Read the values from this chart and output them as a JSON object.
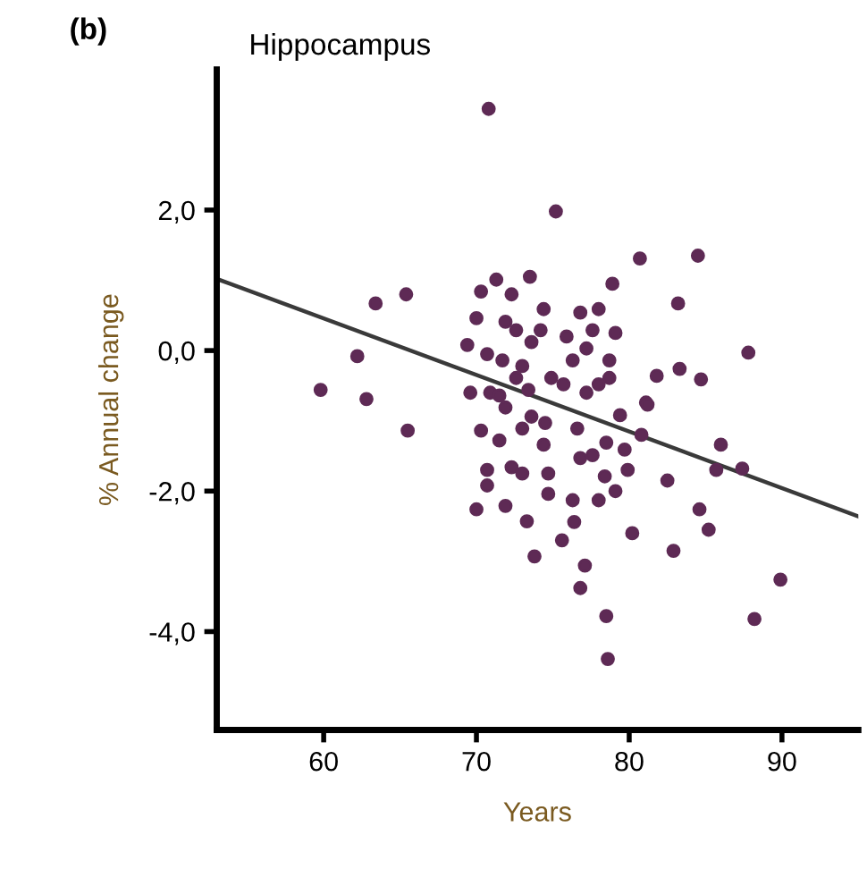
{
  "chart_data": {
    "type": "scatter",
    "title": "Hippocampus",
    "xlabel": "Years",
    "ylabel": "% Annual change",
    "annotations": [
      "(b)"
    ],
    "xlim": [
      53,
      95
    ],
    "ylim": [
      -5.4,
      4.0
    ],
    "xticks": [
      60,
      70,
      80,
      90
    ],
    "yticks": [
      {
        "value": 2,
        "label": "2,0"
      },
      {
        "value": 0,
        "label": "0,0"
      },
      {
        "value": -2,
        "label": "-2,0"
      },
      {
        "value": -4,
        "label": "-4,0"
      }
    ],
    "grid": false,
    "legend": false,
    "series": [
      {
        "marker": "circle",
        "color": "#5e2a55",
        "x": [
          70.8,
          75.2,
          80.7,
          84.5,
          73.5,
          78.9,
          83.2,
          63.4,
          65.4,
          87.8,
          62.2,
          59.8,
          62.8,
          81.8,
          83.3,
          84.7,
          81.1,
          71.3,
          70.3,
          70.0,
          69.4,
          72.3,
          71.9,
          72.6,
          74.2,
          74.4,
          70.7,
          71.7,
          73.0,
          73.6,
          69.6,
          70.9,
          72.6,
          74.9,
          76.8,
          78.0,
          75.9,
          77.6,
          79.1,
          76.3,
          77.2,
          78.7,
          78.7,
          75.7,
          77.2,
          78.0,
          65.5,
          71.5,
          73.4,
          71.9,
          70.3,
          71.5,
          73.0,
          73.6,
          74.5,
          74.4,
          76.6,
          79.4,
          81.2,
          78.5,
          79.7,
          80.8,
          76.8,
          77.6,
          70.7,
          70.7,
          72.3,
          73.0,
          74.7,
          74.7,
          76.3,
          78.0,
          79.1,
          78.4,
          79.9,
          82.5,
          86.0,
          85.7,
          87.4,
          84.6,
          85.2,
          82.9,
          80.2,
          70.0,
          71.9,
          73.3,
          76.4,
          75.6,
          73.8,
          77.1,
          76.8,
          89.9,
          88.2,
          78.5,
          78.6
        ],
        "values": [
          3.44,
          1.98,
          1.31,
          1.35,
          1.05,
          0.95,
          0.67,
          0.67,
          0.8,
          -0.03,
          -0.08,
          -0.56,
          -0.69,
          -0.36,
          -0.26,
          -0.41,
          -0.74,
          1.01,
          0.84,
          0.46,
          0.08,
          0.8,
          0.41,
          0.29,
          0.29,
          0.59,
          -0.05,
          -0.14,
          -0.22,
          0.12,
          -0.6,
          -0.6,
          -0.39,
          -0.39,
          0.54,
          0.59,
          0.2,
          0.29,
          0.25,
          -0.14,
          0.03,
          -0.14,
          -0.39,
          -0.48,
          -0.6,
          -0.48,
          -1.14,
          -0.64,
          -0.56,
          -0.81,
          -1.14,
          -1.28,
          -1.11,
          -0.94,
          -1.03,
          -1.34,
          -1.11,
          -0.92,
          -0.77,
          -1.31,
          -1.41,
          -1.2,
          -1.53,
          -1.49,
          -1.7,
          -1.92,
          -1.66,
          -1.75,
          -1.75,
          -2.04,
          -2.13,
          -2.13,
          -2.0,
          -1.79,
          -1.7,
          -1.85,
          -1.34,
          -1.7,
          -1.68,
          -2.26,
          -2.55,
          -2.85,
          -2.6,
          -2.26,
          -2.21,
          -2.43,
          -2.44,
          -2.7,
          -2.93,
          -3.06,
          -3.38,
          -3.26,
          -3.82,
          -3.78,
          -4.39
        ]
      },
      {
        "type": "line",
        "color": "#3a3a3a",
        "x": [
          53,
          95
        ],
        "values": [
          1.02,
          -2.36
        ]
      }
    ]
  }
}
